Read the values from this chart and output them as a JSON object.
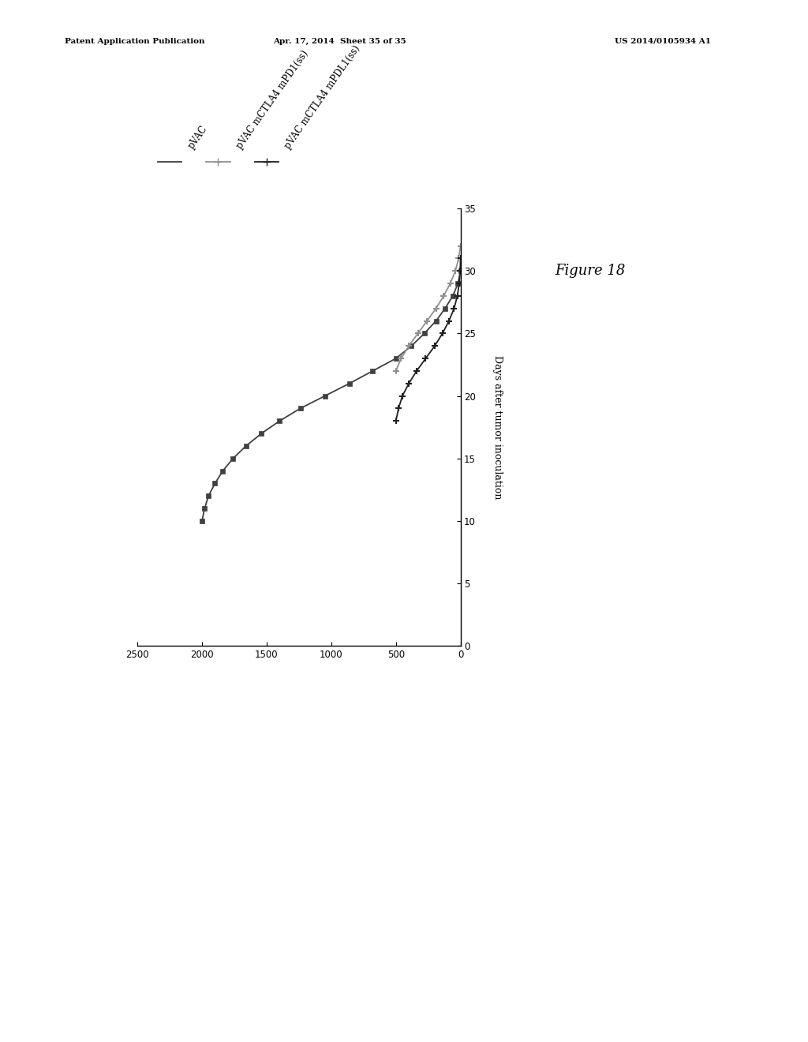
{
  "series": [
    {
      "label": "pVAC",
      "color": "#404040",
      "marker": "s",
      "markersize": 4,
      "linewidth": 1.3,
      "days": [
        10,
        11,
        12,
        13,
        14,
        15,
        16,
        17,
        18,
        19,
        20,
        21,
        22,
        23,
        24,
        25,
        26,
        27,
        28,
        29,
        30
      ],
      "volume": [
        2000,
        1980,
        1950,
        1900,
        1840,
        1760,
        1660,
        1540,
        1400,
        1240,
        1050,
        860,
        680,
        500,
        380,
        280,
        190,
        120,
        60,
        20,
        0
      ]
    },
    {
      "label": "pVAC mCTLA4 mPD1(ss)",
      "color": "#909090",
      "marker": "+",
      "markersize": 6,
      "linewidth": 1.3,
      "days": [
        22,
        23,
        24,
        25,
        26,
        27,
        28,
        29,
        30,
        31,
        32
      ],
      "volume": [
        500,
        460,
        400,
        330,
        260,
        190,
        130,
        80,
        40,
        15,
        0
      ]
    },
    {
      "label": "pVAC mCTLA4 mPDL1(ss)",
      "color": "#202020",
      "marker": "+",
      "markersize": 6,
      "linewidth": 1.3,
      "days": [
        18,
        19,
        20,
        21,
        22,
        23,
        24,
        25,
        26,
        27,
        28,
        29,
        30,
        31
      ],
      "volume": [
        500,
        480,
        450,
        400,
        340,
        270,
        200,
        140,
        90,
        50,
        25,
        10,
        3,
        0
      ]
    }
  ],
  "ylim": [
    0,
    2500
  ],
  "xlim": [
    0,
    35
  ],
  "yticks": [
    0,
    500,
    1000,
    1500,
    2000,
    2500
  ],
  "xticks": [
    0,
    5,
    10,
    15,
    20,
    25,
    30,
    35
  ],
  "background_color": "#ffffff",
  "header_left": "Patent Application Publication",
  "header_mid": "Apr. 17, 2014  Sheet 35 of 35",
  "header_right": "US 2014/0105934 A1",
  "figure_label": "Figure 18",
  "xlabel": "Days after tumor inoculation"
}
